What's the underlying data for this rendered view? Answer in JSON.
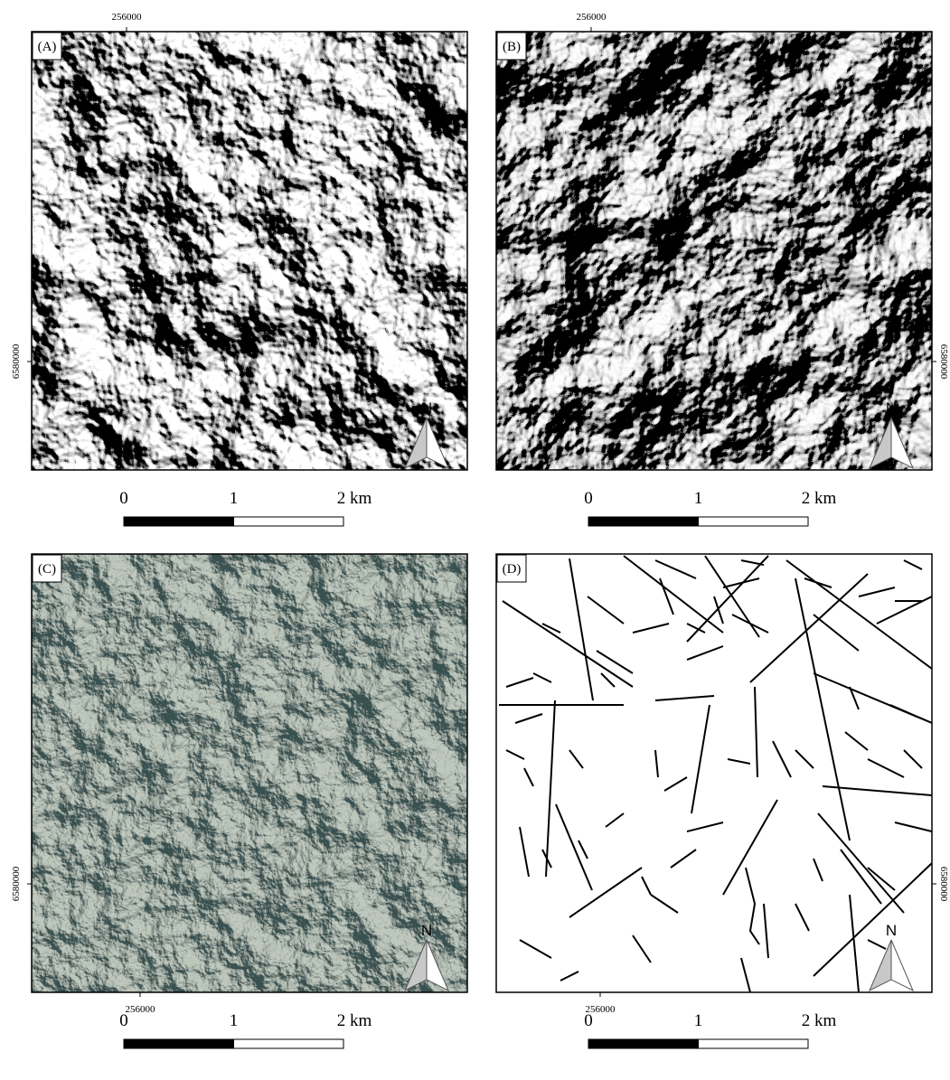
{
  "panels": [
    {
      "label": "(A)",
      "top_coordinate": "256000",
      "left_coordinate": "6580000",
      "north": "N",
      "scale": [
        "0",
        "1",
        "2 km"
      ]
    },
    {
      "label": "(B)",
      "top_coordinate": "256000",
      "right_coordinate": "6580000",
      "north": "N",
      "scale": [
        "0",
        "1",
        "2 km"
      ]
    },
    {
      "label": "(C)",
      "bottom_coordinate": "256000",
      "left_coordinate": "6580000",
      "north": "N",
      "scale": [
        "0",
        "1",
        "2 km"
      ]
    },
    {
      "label": "(D)",
      "bottom_coordinate": "256000",
      "right_coordinate": "6580000",
      "north": "N",
      "scale": [
        "0",
        "1",
        "2 km"
      ]
    }
  ]
}
